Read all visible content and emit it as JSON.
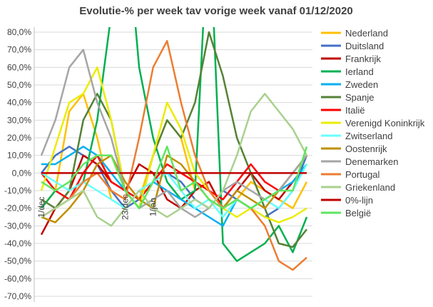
{
  "chart_data": {
    "type": "line",
    "title": "Evolutie-% per week tav vorige week vanaf 01/12/2020",
    "categories": [
      "1/dec",
      null,
      null,
      null,
      null,
      null,
      "23/dec",
      null,
      "1/jan",
      null,
      null,
      null,
      null,
      null,
      null,
      null,
      null,
      null,
      null,
      null
    ],
    "ylim": [
      -70,
      80
    ],
    "yticks": [
      {
        "value": -70,
        "label": "-70,0%"
      },
      {
        "value": -60,
        "label": "-60,0%"
      },
      {
        "value": -50,
        "label": "-50,0%"
      },
      {
        "value": -40,
        "label": "-40,0%"
      },
      {
        "value": -30,
        "label": "-30,0%"
      },
      {
        "value": -20,
        "label": "-20,0%"
      },
      {
        "value": -10,
        "label": "-10,0%"
      },
      {
        "value": 0,
        "label": "0,0%"
      },
      {
        "value": 10,
        "label": "10,0%"
      },
      {
        "value": 20,
        "label": "20,0%"
      },
      {
        "value": 30,
        "label": "30,0%"
      },
      {
        "value": 40,
        "label": "40,0%"
      },
      {
        "value": 50,
        "label": "50,0%"
      },
      {
        "value": 60,
        "label": "60,0%"
      },
      {
        "value": 70,
        "label": "70,0%"
      },
      {
        "value": 80,
        "label": "80,0%"
      }
    ],
    "grid": true,
    "legend": "right",
    "series": [
      {
        "name": "Nederland",
        "color": "#ffc000",
        "values": [
          -20,
          -10,
          35,
          45,
          20,
          -15,
          -20,
          -15,
          10,
          30,
          20,
          -10,
          -5,
          -20,
          -15,
          -5,
          -10,
          -15,
          -20,
          -5
        ]
      },
      {
        "name": "Duitsland",
        "color": "#4472c4",
        "values": [
          0,
          10,
          15,
          10,
          5,
          -10,
          -20,
          -15,
          -5,
          0,
          -5,
          -15,
          -20,
          -10,
          -15,
          -20,
          -25,
          -20,
          -10,
          10
        ]
      },
      {
        "name": "Frankrijk",
        "color": "#c00000",
        "values": [
          -35,
          -20,
          -10,
          10,
          5,
          -5,
          -10,
          5,
          0,
          -15,
          -20,
          -10,
          -5,
          -20,
          -10,
          0,
          -10,
          -15,
          -5,
          5
        ]
      },
      {
        "name": "Ierland",
        "color": "#00b050",
        "values": [
          -20,
          -10,
          -15,
          -5,
          30,
          90,
          150,
          60,
          20,
          -5,
          -15,
          -10,
          150,
          -40,
          -50,
          -45,
          -40,
          -30,
          -45,
          -25
        ]
      },
      {
        "name": "Zweden",
        "color": "#00b0f0",
        "values": [
          5,
          5,
          10,
          15,
          10,
          0,
          -10,
          -15,
          -5,
          -10,
          -15,
          -20,
          -25,
          -30,
          -15,
          -20,
          -15,
          -10,
          -5,
          5
        ]
      },
      {
        "name": "Spanje",
        "color": "#548235",
        "values": [
          -15,
          -20,
          -10,
          30,
          45,
          30,
          -10,
          -20,
          10,
          30,
          20,
          40,
          80,
          55,
          20,
          0,
          -20,
          -40,
          -42,
          -32
        ]
      },
      {
        "name": "Italië",
        "color": "#ff0000",
        "values": [
          0,
          -10,
          -15,
          0,
          10,
          -5,
          -10,
          -15,
          -5,
          5,
          0,
          -5,
          -10,
          -15,
          -5,
          5,
          -5,
          -10,
          0,
          10
        ]
      },
      {
        "name": "Verenigd Koninkrijk",
        "color": "#ecec00",
        "values": [
          -10,
          15,
          40,
          45,
          60,
          30,
          -10,
          -20,
          10,
          40,
          25,
          0,
          -10,
          -20,
          -25,
          -20,
          -25,
          -28,
          -25,
          -20
        ]
      },
      {
        "name": "Zwitserland",
        "color": "#66ffff",
        "values": [
          0,
          -5,
          -10,
          -5,
          -10,
          -15,
          -20,
          -10,
          -5,
          0,
          -10,
          -20,
          -15,
          -25,
          -15,
          -20,
          -15,
          -20,
          -10,
          5
        ]
      },
      {
        "name": "Oostenrijk",
        "color": "#bf8f00",
        "values": [
          -25,
          -28,
          -20,
          -10,
          5,
          10,
          -5,
          -15,
          -20,
          10,
          5,
          -5,
          -15,
          -20,
          -10,
          -15,
          -20,
          -10,
          0,
          10
        ]
      },
      {
        "name": "Denemarken",
        "color": "#a5a5a5",
        "values": [
          10,
          30,
          60,
          70,
          40,
          20,
          -10,
          -20,
          -15,
          -10,
          -20,
          -25,
          -20,
          -10,
          -5,
          -10,
          -15,
          -10,
          0,
          10
        ]
      },
      {
        "name": "Portugal",
        "color": "#ed7d31",
        "values": [
          -25,
          -20,
          -15,
          -5,
          0,
          -10,
          -15,
          20,
          60,
          75,
          40,
          10,
          -10,
          -20,
          -15,
          -20,
          -30,
          -50,
          -55,
          -48
        ]
      },
      {
        "name": "Griekenland",
        "color": "#a9d18e",
        "values": [
          -25,
          -20,
          -15,
          -10,
          -25,
          -30,
          -20,
          -10,
          -20,
          -25,
          -20,
          -15,
          -20,
          -10,
          10,
          35,
          45,
          35,
          25,
          10
        ]
      },
      {
        "name": "0%-lijn",
        "color": "#c00000",
        "values": [
          0,
          0,
          0,
          0,
          0,
          0,
          0,
          0,
          0,
          0,
          0,
          0,
          0,
          0,
          0,
          0,
          0,
          0,
          0,
          0
        ]
      },
      {
        "name": "België",
        "color": "#5ee65e",
        "values": [
          -5,
          -10,
          -5,
          5,
          10,
          10,
          -10,
          -20,
          -5,
          15,
          -10,
          -5,
          -15,
          -20,
          -15,
          -20,
          -15,
          -10,
          -10,
          15
        ]
      }
    ]
  }
}
